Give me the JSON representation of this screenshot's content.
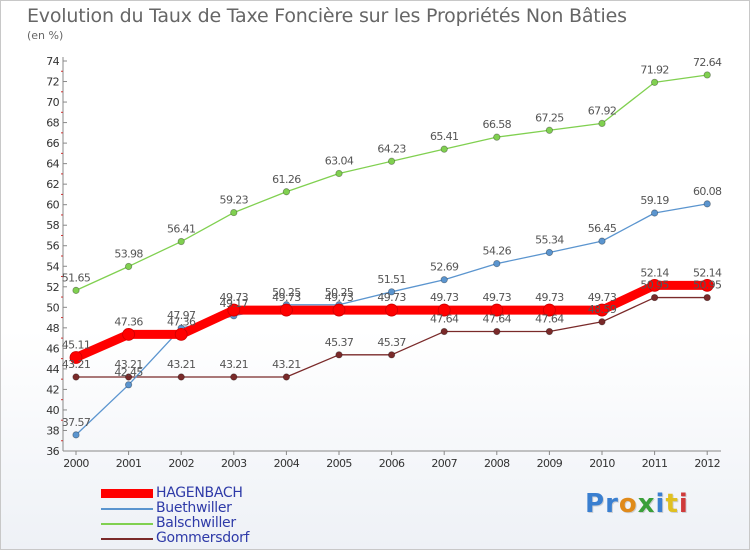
{
  "header": {
    "title": "Evolution du Taux de Taxe Foncière sur les Propriétés Non Bâties",
    "subtitle": "(en %)"
  },
  "brand": {
    "text": "Proxiti",
    "letter_colors": [
      "#3a7fd0",
      "#3a7fd0",
      "#e08a1a",
      "#3aa03a",
      "#3a7fd0",
      "#e0c020",
      "#d03a3a"
    ]
  },
  "chart_data": {
    "type": "line",
    "title": "Evolution du Taux de Taxe Foncière sur les Propriétés Non Bâties",
    "ylabel": "(en %)",
    "xlabel": "",
    "x": [
      "2000",
      "2001",
      "2002",
      "2003",
      "2004",
      "2005",
      "2006",
      "2007",
      "2008",
      "2009",
      "2010",
      "2011",
      "2012"
    ],
    "ylim": [
      36,
      74
    ],
    "yticks": [
      36,
      38,
      40,
      42,
      44,
      46,
      48,
      50,
      52,
      54,
      56,
      58,
      60,
      62,
      64,
      66,
      68,
      70,
      72,
      74
    ],
    "grid": false,
    "legend_position": "bottom-left",
    "series": [
      {
        "name": "Gommersdorf",
        "color": "#7a2a2a",
        "values": [
          43.21,
          43.21,
          43.21,
          43.21,
          43.21,
          45.37,
          45.37,
          47.64,
          47.64,
          47.64,
          48.59,
          50.95,
          50.95
        ],
        "labels": [
          "43.21",
          "43.21",
          "43.21",
          "43.21",
          "43.21",
          "45.37",
          "45.37",
          "47.64",
          "47.64",
          "47.64",
          "48.59",
          "50.95",
          "50.95"
        ]
      },
      {
        "name": "Buethwiller",
        "color": "#5b95cf",
        "values": [
          37.57,
          42.45,
          47.97,
          49.17,
          50.25,
          50.25,
          51.51,
          52.69,
          54.26,
          55.34,
          56.45,
          59.19,
          60.08
        ],
        "labels": [
          "37.57",
          "42.45",
          "47.97",
          "49.17",
          "50.25",
          "50.25",
          "51.51",
          "52.69",
          "54.26",
          "55.34",
          "56.45",
          "59.19",
          "60.08"
        ]
      },
      {
        "name": "Balschwiller",
        "color": "#80d050",
        "values": [
          51.65,
          53.98,
          56.41,
          59.23,
          61.26,
          63.04,
          64.23,
          65.41,
          66.58,
          67.25,
          67.92,
          71.92,
          72.64
        ],
        "labels": [
          "51.65",
          "53.98",
          "56.41",
          "59.23",
          "61.26",
          "63.04",
          "64.23",
          "65.41",
          "66.58",
          "67.25",
          "67.92",
          "71.92",
          "72.64"
        ]
      },
      {
        "name": "HAGENBACH",
        "color": "#ff0000",
        "values": [
          45.11,
          47.36,
          47.36,
          49.73,
          49.73,
          49.73,
          49.73,
          49.73,
          49.73,
          49.73,
          49.73,
          52.14,
          52.14
        ],
        "labels": [
          "45.11",
          "47.36",
          "47.36",
          "49.73",
          "49.73",
          "49.73",
          "49.73",
          "49.73",
          "49.73",
          "49.73",
          "49.73",
          "52.14",
          "52.14"
        ]
      }
    ],
    "legend": [
      "HAGENBACH",
      "Buethwiller",
      "Balschwiller",
      "Gommersdorf"
    ]
  }
}
